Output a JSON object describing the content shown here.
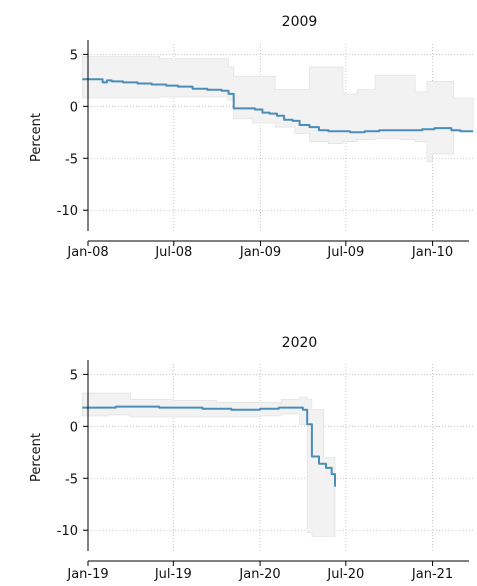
{
  "chart_data": [
    {
      "type": "line",
      "title": "2009",
      "xlabel": "",
      "ylabel": "Percent",
      "ylim": [
        -12,
        6
      ],
      "xlim": [
        "2008-01-01",
        "2010-04-01"
      ],
      "yticks": [
        5,
        0,
        -5,
        -10
      ],
      "ytick_labels": [
        "5",
        "0",
        "-5",
        "-10"
      ],
      "xticks": [
        "2008-01-01",
        "2008-07-01",
        "2009-01-01",
        "2009-07-01",
        "2010-01-01"
      ],
      "xtick_labels": [
        "Jan-08",
        "Jul-08",
        "Jan-09",
        "Jul-09",
        "Jan-10"
      ],
      "grid": true,
      "legend": "none",
      "colors": {
        "line": "#4a8db8",
        "band": "#f2f2f2",
        "band_edge": "#dddddd"
      },
      "series": [
        {
          "kind": "line",
          "x": [
            "2007-12-20",
            "2008-01-15",
            "2008-02-01",
            "2008-02-10",
            "2008-02-20",
            "2008-03-15",
            "2008-04-15",
            "2008-05-15",
            "2008-06-15",
            "2008-07-10",
            "2008-08-10",
            "2008-09-10",
            "2008-10-10",
            "2008-10-25",
            "2008-11-05",
            "2008-11-20",
            "2008-12-05",
            "2008-12-20",
            "2009-01-05",
            "2009-01-20",
            "2009-02-05",
            "2009-02-20",
            "2009-03-10",
            "2009-03-25",
            "2009-04-15",
            "2009-05-05",
            "2009-05-25",
            "2009-06-15",
            "2009-07-10",
            "2009-08-10",
            "2009-09-10",
            "2009-10-10",
            "2009-11-10",
            "2009-12-10",
            "2010-01-05",
            "2010-01-25",
            "2010-02-10",
            "2010-03-01",
            "2010-03-20",
            "2010-03-28"
          ],
          "y": [
            2.6,
            2.6,
            2.3,
            2.5,
            2.4,
            2.3,
            2.2,
            2.1,
            2.0,
            1.9,
            1.7,
            1.6,
            1.5,
            1.2,
            -0.2,
            -0.2,
            -0.2,
            -0.3,
            -0.6,
            -0.7,
            -0.9,
            -1.3,
            -1.4,
            -1.8,
            -2.0,
            -2.3,
            -2.4,
            -2.4,
            -2.5,
            -2.4,
            -2.3,
            -2.3,
            -2.3,
            -2.2,
            -2.1,
            -2.1,
            -2.3,
            -2.4,
            -2.4,
            -2.4
          ]
        },
        {
          "kind": "band",
          "x": [
            "2007-12-20",
            "2008-03-01",
            "2008-06-01",
            "2008-09-01",
            "2008-10-25",
            "2008-11-05",
            "2008-12-15",
            "2009-02-01",
            "2009-03-15",
            "2009-04-15",
            "2009-05-25",
            "2009-06-25",
            "2009-07-25",
            "2009-09-01",
            "2009-10-25",
            "2009-11-25",
            "2009-12-20",
            "2010-01-01",
            "2010-02-15",
            "2010-03-28"
          ],
          "lower": [
            0.8,
            0.8,
            0.9,
            0.9,
            0.6,
            -1.2,
            -1.6,
            -2.0,
            -2.6,
            -3.4,
            -3.6,
            -3.4,
            -3.2,
            -3.1,
            -3.2,
            -3.4,
            -5.3,
            -4.6,
            -2.4,
            -2.4
          ],
          "upper": [
            4.8,
            4.8,
            4.6,
            4.6,
            3.8,
            2.9,
            2.9,
            1.6,
            1.6,
            3.8,
            3.8,
            1.2,
            1.6,
            3.0,
            3.0,
            1.4,
            2.4,
            2.4,
            0.8,
            -1.6
          ]
        }
      ]
    },
    {
      "type": "line",
      "title": "2020",
      "xlabel": "",
      "ylabel": "Percent",
      "ylim": [
        -12,
        6
      ],
      "xlim": [
        "2019-01-01",
        "2021-04-01"
      ],
      "yticks": [
        5,
        0,
        -5,
        -10
      ],
      "ytick_labels": [
        "5",
        "0",
        "-5",
        "-10"
      ],
      "xticks": [
        "2019-01-01",
        "2019-07-01",
        "2020-01-01",
        "2020-07-01",
        "2021-01-01"
      ],
      "xtick_labels": [
        "Jan-19",
        "Jul-19",
        "Jan-20",
        "Jul-20",
        "Jan-21"
      ],
      "grid": true,
      "legend": "none",
      "colors": {
        "line": "#4a8db8",
        "band": "#f2f2f2",
        "band_edge": "#dddddd"
      },
      "series": [
        {
          "kind": "line",
          "x": [
            "2018-12-20",
            "2019-02-01",
            "2019-03-01",
            "2019-04-15",
            "2019-06-01",
            "2019-07-15",
            "2019-09-01",
            "2019-11-01",
            "2020-01-01",
            "2020-02-10",
            "2020-03-05",
            "2020-03-20",
            "2020-04-01",
            "2020-04-10",
            "2020-04-20",
            "2020-05-05",
            "2020-05-20",
            "2020-06-01",
            "2020-06-08"
          ],
          "y": [
            1.8,
            1.8,
            1.9,
            1.9,
            1.8,
            1.8,
            1.7,
            1.6,
            1.7,
            1.8,
            1.8,
            1.8,
            1.6,
            0.2,
            -2.9,
            -3.6,
            -4.0,
            -4.6,
            -5.8
          ]
        },
        {
          "kind": "band",
          "x": [
            "2018-12-20",
            "2019-02-15",
            "2019-04-01",
            "2019-07-01",
            "2019-10-01",
            "2020-01-01",
            "2020-02-15",
            "2020-03-25",
            "2020-04-10",
            "2020-04-20",
            "2020-05-15",
            "2020-06-08"
          ],
          "lower": [
            1.0,
            1.1,
            0.9,
            0.9,
            0.9,
            1.0,
            1.2,
            0.2,
            -10.2,
            -10.6,
            -10.6,
            -10.4
          ],
          "upper": [
            3.2,
            3.2,
            2.6,
            2.5,
            2.3,
            2.3,
            2.6,
            2.8,
            2.6,
            1.6,
            -3.0,
            -4.6
          ]
        }
      ]
    }
  ]
}
